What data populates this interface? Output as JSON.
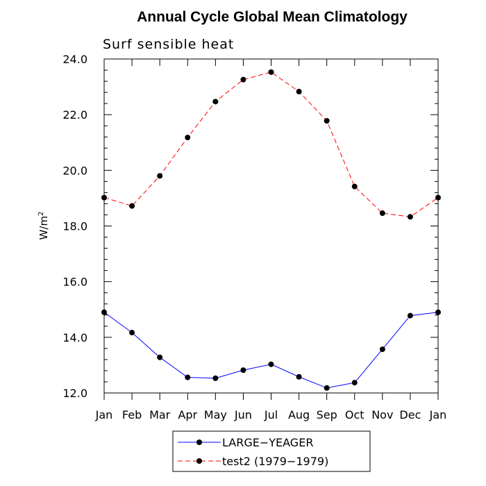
{
  "chart_data": {
    "type": "line",
    "title": "Annual Cycle Global Mean Climatology",
    "subtitle": "Surf sensible heat",
    "ylabel": "W/m",
    "ylabel_superscript": "2",
    "xlabel": "",
    "categories": [
      "Jan",
      "Feb",
      "Mar",
      "Apr",
      "May",
      "Jun",
      "Jul",
      "Aug",
      "Sep",
      "Oct",
      "Nov",
      "Dec",
      "Jan"
    ],
    "ylim": [
      12.0,
      24.0
    ],
    "yticks": [
      "12.0",
      "14.0",
      "16.0",
      "18.0",
      "20.0",
      "22.0",
      "24.0"
    ],
    "grid": false,
    "legend_position": "bottom",
    "series": [
      {
        "name": "LARGE−YEAGER",
        "color": "#0000ff",
        "line_style": "solid",
        "marker": "filled-circle",
        "values": [
          14.9,
          14.17,
          13.28,
          12.56,
          12.53,
          12.82,
          13.03,
          12.58,
          12.18,
          12.37,
          13.57,
          14.78,
          14.9
        ]
      },
      {
        "name": "test2 (1979−1979)",
        "color": "#ff0000",
        "line_style": "dashed",
        "marker": "filled-circle",
        "values": [
          19.02,
          18.72,
          19.8,
          21.18,
          22.47,
          23.26,
          23.53,
          22.83,
          21.78,
          19.42,
          18.46,
          18.33,
          19.02
        ]
      }
    ]
  }
}
